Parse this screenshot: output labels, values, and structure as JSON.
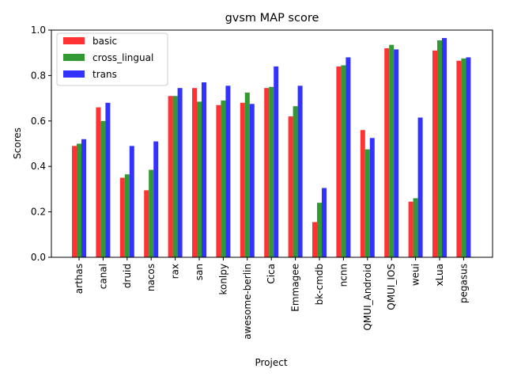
{
  "chart_data": {
    "type": "bar",
    "title": "gvsm MAP score",
    "xlabel": "Project",
    "ylabel": "Scores",
    "ylim": [
      0,
      1.0
    ],
    "yticks": [
      "0.0",
      "0.2",
      "0.4",
      "0.6",
      "0.8",
      "1.0"
    ],
    "grid": false,
    "legend_position": "top-left",
    "categories": [
      "arthas",
      "canal",
      "druid",
      "nacos",
      "rax",
      "san",
      "konlpy",
      "awesome-berlin",
      "Cica",
      "Emmagee",
      "bk-cmdb",
      "ncnn",
      "QMUI_Android",
      "QMUI_IOS",
      "weui",
      "xLua",
      "pegasus"
    ],
    "series": [
      {
        "name": "basic",
        "color": "#ff0000",
        "values": [
          0.49,
          0.66,
          0.35,
          0.295,
          0.71,
          0.745,
          0.67,
          0.68,
          0.745,
          0.62,
          0.155,
          0.84,
          0.56,
          0.92,
          0.245,
          0.91,
          0.865
        ]
      },
      {
        "name": "cross_lingual",
        "color": "#008000",
        "values": [
          0.5,
          0.6,
          0.365,
          0.385,
          0.71,
          0.685,
          0.69,
          0.725,
          0.75,
          0.665,
          0.24,
          0.845,
          0.475,
          0.935,
          0.26,
          0.955,
          0.875
        ]
      },
      {
        "name": "trans",
        "color": "#0000ff",
        "values": [
          0.52,
          0.68,
          0.49,
          0.51,
          0.745,
          0.77,
          0.755,
          0.675,
          0.84,
          0.755,
          0.305,
          0.88,
          0.525,
          0.915,
          0.615,
          0.965,
          0.88
        ]
      }
    ]
  }
}
